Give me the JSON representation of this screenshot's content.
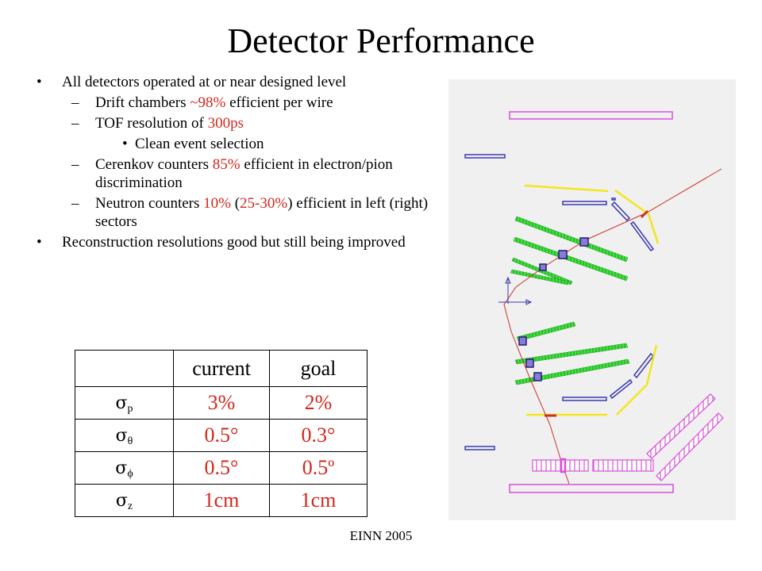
{
  "title": "Detector Performance",
  "bullets": {
    "item1": "All detectors operated at or near designed level",
    "drift_pre": "Drift chambers ",
    "drift_val": "~98%",
    "drift_post": " efficient per wire",
    "tof_pre": "TOF resolution of ",
    "tof_val": "300ps",
    "clean": "Clean event selection",
    "cer_pre": "Cerenkov counters ",
    "cer_val": "85%",
    "cer_post": " efficient in electron/pion discrimination",
    "neu_pre": "Neutron counters ",
    "neu_val1": "10%",
    "neu_mid1": " (",
    "neu_val2": "25-30%",
    "neu_mid2": ") efficient in left (right) sectors",
    "item2": "Reconstruction resolutions good but still being improved"
  },
  "table": {
    "header": {
      "col1": "current",
      "col2": "goal"
    },
    "rows": [
      {
        "sym": "σ",
        "sub": "p",
        "current": "3%",
        "goal": "2%"
      },
      {
        "sym": "σ",
        "sub": "θ",
        "current": "0.5°",
        "goal": "0.3°"
      },
      {
        "sym": "σ",
        "sub": "ϕ",
        "current": "0.5°",
        "goal": "0.5º"
      },
      {
        "sym": "σ",
        "sub": "z",
        "current": "1cm",
        "goal": "1cm"
      }
    ]
  },
  "footer": "EINN 2005",
  "colors": {
    "highlight": "#d1281d",
    "magenta": "#d94fd9",
    "blue": "#3a3ab0",
    "yellow": "#f2e61c",
    "green": "#3de03d",
    "track": "#c8322a"
  }
}
